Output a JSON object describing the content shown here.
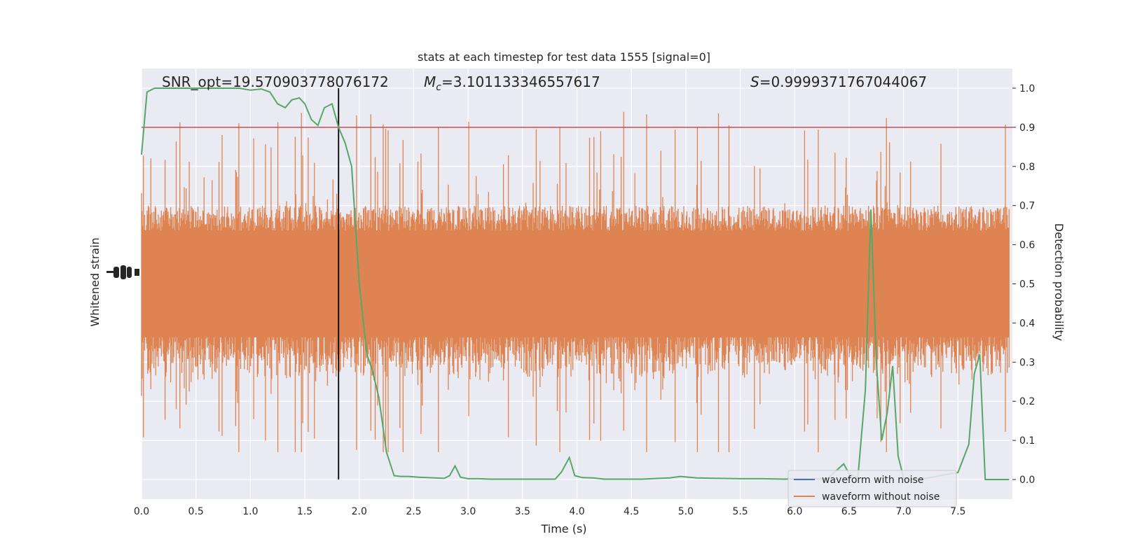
{
  "chart_data": {
    "type": "line",
    "title": "stats at each timestep for test data 1555 [signal=0]",
    "xlabel": "Time (s)",
    "ylabel_left": "Whitened strain",
    "ylabel_right": "Detection probability",
    "xlim": [
      0.0,
      8.0
    ],
    "ylim_right": [
      -0.05,
      1.05
    ],
    "x_ticks": [
      "0.0",
      "0.5",
      "1.0",
      "1.5",
      "2.0",
      "2.5",
      "3.0",
      "3.5",
      "4.0",
      "4.5",
      "5.0",
      "5.5",
      "6.0",
      "6.5",
      "7.0",
      "7.5"
    ],
    "y_ticks_right": [
      "0.0",
      "0.1",
      "0.2",
      "0.3",
      "0.4",
      "0.5",
      "0.6",
      "0.7",
      "0.8",
      "0.9",
      "1.0"
    ],
    "annotations": {
      "snr": "SNR_opt=19.570903778076172",
      "mc_symbol": "M",
      "mc_sub": "c",
      "mc_value": "=3.101133346557617",
      "s_symbol": "S",
      "s_value": "=0.9999371767044067"
    },
    "threshold": 0.9,
    "vline_x": 1.81,
    "noise_strain": {
      "description_band_center": 0.5,
      "band_half_width": 0.19,
      "spike_max": 0.99,
      "spike_min": 0.07
    },
    "detection_probability": {
      "x": [
        0.0,
        0.05,
        0.12,
        0.2,
        0.3,
        0.4,
        0.5,
        0.6,
        0.7,
        0.8,
        0.9,
        1.0,
        1.1,
        1.18,
        1.25,
        1.32,
        1.38,
        1.45,
        1.5,
        1.56,
        1.62,
        1.68,
        1.75,
        1.81,
        1.87,
        1.93,
        2.0,
        2.07,
        2.12,
        2.18,
        2.25,
        2.32,
        2.38,
        2.45,
        2.55,
        2.7,
        2.78,
        2.83,
        2.88,
        2.93,
        3.0,
        3.1,
        3.2,
        3.4,
        3.6,
        3.8,
        3.86,
        3.93,
        3.98,
        4.05,
        4.15,
        4.25,
        4.5,
        4.6,
        4.75,
        4.85,
        4.95,
        5.1,
        5.3,
        5.5,
        5.7,
        5.9,
        6.1,
        6.3,
        6.45,
        6.5,
        6.58,
        6.65,
        6.7,
        6.75,
        6.8,
        6.85,
        6.9,
        6.95,
        7.0,
        7.05,
        7.1,
        7.2,
        7.3,
        7.5,
        7.6,
        7.65,
        7.7,
        7.75,
        7.8,
        7.85,
        7.9,
        7.97
      ],
      "y": [
        0.83,
        0.99,
        1.0,
        1.0,
        1.0,
        1.0,
        1.0,
        1.0,
        1.0,
        1.0,
        1.0,
        0.995,
        0.998,
        0.99,
        0.96,
        0.95,
        0.97,
        0.975,
        0.96,
        0.92,
        0.905,
        0.95,
        0.96,
        0.9,
        0.86,
        0.8,
        0.5,
        0.32,
        0.28,
        0.21,
        0.07,
        0.01,
        0.008,
        0.008,
        0.006,
        0.004,
        0.003,
        0.01,
        0.035,
        0.006,
        0.002,
        0.002,
        0.001,
        0.001,
        0.001,
        0.001,
        0.02,
        0.056,
        0.01,
        0.005,
        0.004,
        0.001,
        0.001,
        0.001,
        0.003,
        0.004,
        0.008,
        0.004,
        0.003,
        0.002,
        0.002,
        0.001,
        0.002,
        0.002,
        0.04,
        0.015,
        0.004,
        0.23,
        0.69,
        0.3,
        0.1,
        0.17,
        0.29,
        0.06,
        0.005,
        0.001,
        0.001,
        0.003,
        0.008,
        0.018,
        0.09,
        0.27,
        0.32,
        0.0,
        0.0,
        0.0,
        0.0,
        0.0
      ],
      "color": "#55a868"
    },
    "legend": [
      {
        "label": "waveform with noise",
        "color": "#4c72b0"
      },
      {
        "label": "waveform without noise",
        "color": "#dd8452"
      }
    ],
    "legend_position": "lower-right",
    "colors": {
      "plot_bg": "#eaeaf2",
      "grid": "#ffffff",
      "noise": "#dd8452",
      "threshold": "#c44e52",
      "vline": "#000000"
    },
    "grid": true
  }
}
